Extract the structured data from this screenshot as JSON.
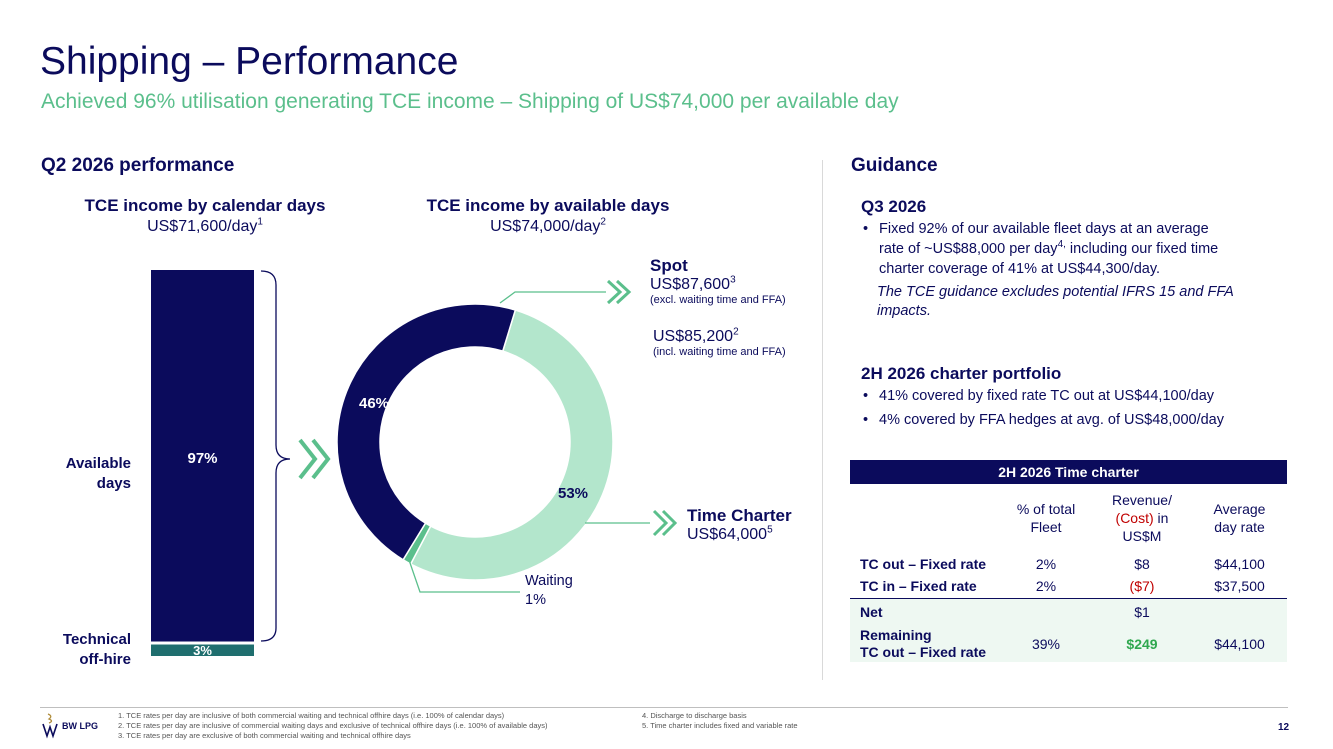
{
  "title": "Shipping – Performance",
  "subtitle": "Achieved 96% utilisation generating TCE income – Shipping of US$74,000 per available day",
  "left": {
    "heading": "Q2 2026 performance",
    "calendar": {
      "title": "TCE income by calendar days",
      "value": "US$71,600/day",
      "note": "1"
    },
    "available": {
      "title": "TCE income by available days",
      "value": "US$74,000/day",
      "note": "2"
    },
    "labels": {
      "available_days": [
        "Available",
        "days"
      ],
      "technical": [
        "Technical",
        "off-hire"
      ]
    },
    "spot": {
      "title": "Spot",
      "value1": "US$87,600",
      "note1": "3",
      "sub1": "(excl. waiting time and FFA)",
      "value2": "US$85,200",
      "note2": "2",
      "sub2": "(incl. waiting time and FFA)"
    },
    "time_charter": {
      "title": "Time Charter",
      "value": "US$64,000",
      "note": "5"
    },
    "waiting": {
      "label": "Waiting",
      "value": "1%"
    }
  },
  "chart_data": [
    {
      "type": "bar",
      "categories": [
        "Calendar days"
      ],
      "series": [
        {
          "name": "Available days",
          "values": [
            97
          ],
          "label": "97%",
          "color": "#0b0b5c"
        },
        {
          "name": "Technical off-hire",
          "values": [
            3
          ],
          "label": "3%",
          "color": "#1f6e6e"
        }
      ],
      "stacked": true,
      "ylim": [
        0,
        100
      ]
    },
    {
      "type": "pie",
      "donut": true,
      "slices": [
        {
          "name": "Spot",
          "value": 46,
          "label": "46%",
          "color": "#0b0b5c"
        },
        {
          "name": "Time Charter",
          "value": 53,
          "label": "53%",
          "color": "#b3e6cc"
        },
        {
          "name": "Waiting",
          "value": 1,
          "label": "",
          "color": "#5bbf8c"
        }
      ]
    }
  ],
  "right": {
    "heading": "Guidance",
    "q3": {
      "title": "Q3 2026",
      "bullet_a": "Fixed 92% of our available fleet days at an average",
      "bullet_b": "rate of ~US$88,000 per day",
      "bullet_sup": "4,",
      "bullet_c": " including our fixed time",
      "bullet_d": "charter coverage of 41% at US$44,300/day.",
      "note_a": "The TCE guidance excludes potential IFRS 15 and FFA",
      "note_b": "impacts."
    },
    "h2": {
      "title": "2H 2026 charter portfolio",
      "bullets": [
        "41% covered by fixed rate TC out at US$44,100/day",
        "4% covered by FFA hedges at avg. of US$48,000/day"
      ]
    },
    "table": {
      "title": "2H 2026 Time charter",
      "col1": [
        "% of total",
        "Fleet"
      ],
      "col2_a": "Revenue/",
      "col2_b": "(Cost)",
      "col2_c": " in",
      "col2_d": "US$M",
      "col3": [
        "Average",
        "day rate"
      ],
      "rows": [
        {
          "label": "TC out – Fixed rate",
          "pct": "2%",
          "rev": "$8",
          "rate": "$44,100"
        },
        {
          "label": "TC in – Fixed rate",
          "pct": "2%",
          "rev": "($7)",
          "rate": "$37,500"
        }
      ],
      "net": {
        "label": "Net",
        "pct": "",
        "rev": "$1",
        "rate": ""
      },
      "remaining": {
        "label_a": "Remaining",
        "label_b": "TC out – Fixed rate",
        "pct": "39%",
        "rev": "$249",
        "rate": "$44,100"
      }
    }
  },
  "footer": {
    "logo": "BW LPG",
    "notes_left": [
      "1.  TCE rates per day are inclusive of both commercial waiting and technical offhire days (i.e. 100% of calendar days)",
      "2.  TCE rates per day are inclusive of commercial waiting days and exclusive of technical offhire days (i.e. 100% of available days)",
      "3.  TCE rates per day are exclusive of both commercial waiting and technical offhire days"
    ],
    "notes_right": [
      "4.  Discharge to discharge basis",
      "5.  Time charter includes fixed and variable rate"
    ],
    "page": "12"
  }
}
